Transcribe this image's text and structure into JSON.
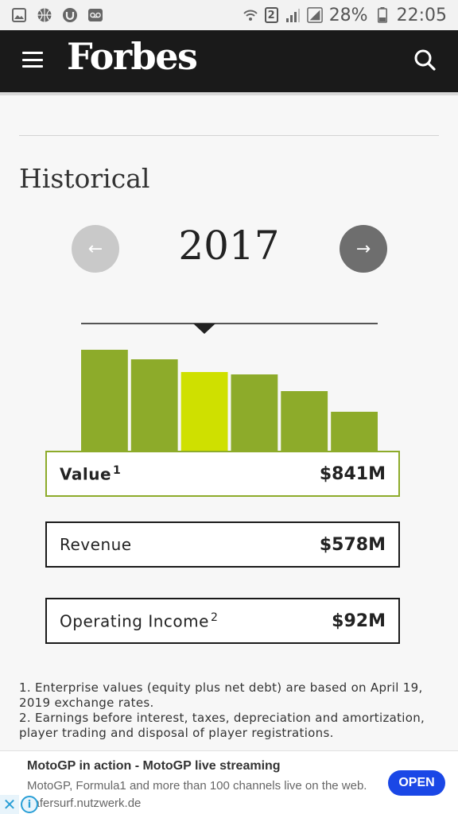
{
  "status_bar": {
    "battery": "28%",
    "time": "22:05",
    "sim_slot": "2"
  },
  "header": {
    "logo": "Forbes"
  },
  "section": {
    "title": "Historical"
  },
  "year_nav": {
    "year": "2017",
    "prev_arrow": "←",
    "next_arrow": "→"
  },
  "chart_data": {
    "type": "bar",
    "categories": [
      "",
      "",
      "",
      "",
      "",
      ""
    ],
    "values": [
      128,
      116,
      100,
      97,
      76,
      50
    ],
    "selected_index": 2,
    "colors": {
      "bar": "#8dab2a",
      "selected": "#cfe000"
    }
  },
  "metrics": {
    "value": {
      "label": "Value",
      "note": "1",
      "amount": "$841M"
    },
    "revenue": {
      "label": "Revenue",
      "amount": "$578M"
    },
    "income": {
      "label": "Operating Income",
      "note": "2",
      "amount": "$92M"
    }
  },
  "footnotes": {
    "line1": "1. Enterprise values (equity plus net debt) are based on April 19, 2019 exchange rates.",
    "line2": "2. Earnings before interest, taxes, depreciation and amortization, player trading and disposal of player registrations."
  },
  "ad": {
    "title": "MotoGP in action - MotoGP live streaming",
    "desc": "MotoGP, Formula1 and more than 100 channels live on the web. safersurf.nutzwerk.de",
    "cta": "OPEN",
    "close": "✕",
    "info": "i"
  }
}
